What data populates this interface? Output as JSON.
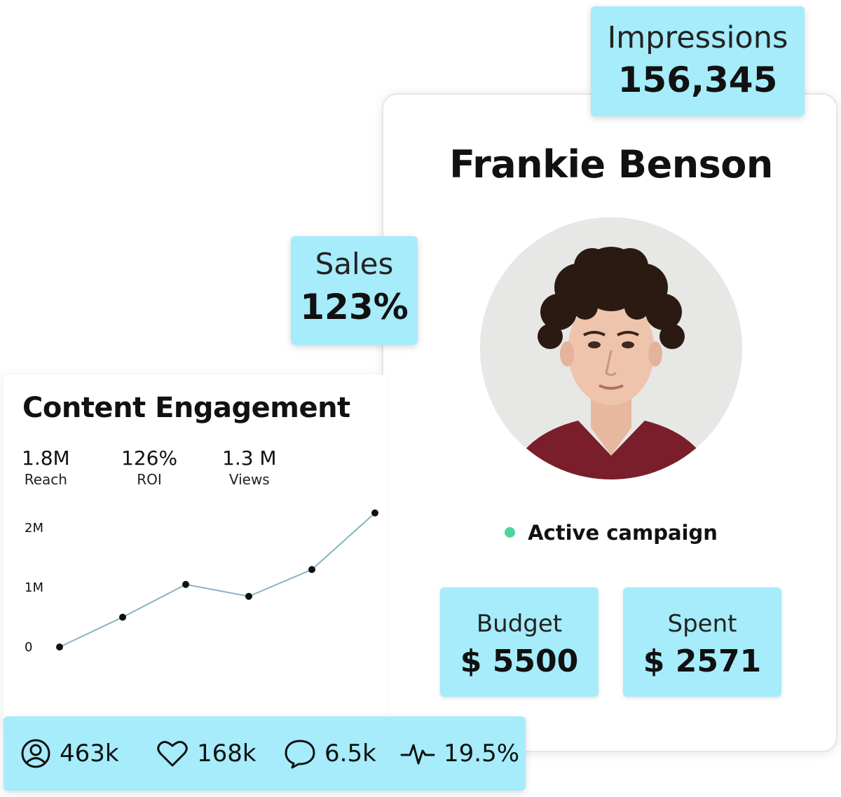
{
  "impressions": {
    "label": "Impressions",
    "value": "156,345"
  },
  "sales": {
    "label": "Sales",
    "value": "123%"
  },
  "profile": {
    "name": "Frankie Benson",
    "status": "Active campaign",
    "status_color": "#4fd39c",
    "budget": {
      "label": "Budget",
      "value": "$ 5500"
    },
    "spent": {
      "label": "Spent",
      "value": "$ 2571"
    }
  },
  "engagement": {
    "title": "Content Engagement",
    "metrics": [
      {
        "value": "1.8M",
        "label": "Reach"
      },
      {
        "value": "126%",
        "label": "ROI"
      },
      {
        "value": "1.3 M",
        "label": "Views"
      }
    ]
  },
  "chart_data": {
    "type": "line",
    "x": [
      1,
      2,
      3,
      4,
      5,
      6
    ],
    "values": [
      0,
      0.5,
      1.05,
      0.85,
      1.3,
      2.25
    ],
    "yticks": [
      "0",
      "1M",
      "2M"
    ],
    "ylim": [
      0,
      2.25
    ],
    "grid": false,
    "line_color": "#86b3c2",
    "point_color": "#111111"
  },
  "social": [
    {
      "icon": "user-circle-icon",
      "value": "463k"
    },
    {
      "icon": "heart-icon",
      "value": "168k"
    },
    {
      "icon": "comment-icon",
      "value": "6.5k"
    },
    {
      "icon": "pulse-icon",
      "value": "19.5%"
    }
  ],
  "colors": {
    "accent": "#a6ecfb"
  }
}
